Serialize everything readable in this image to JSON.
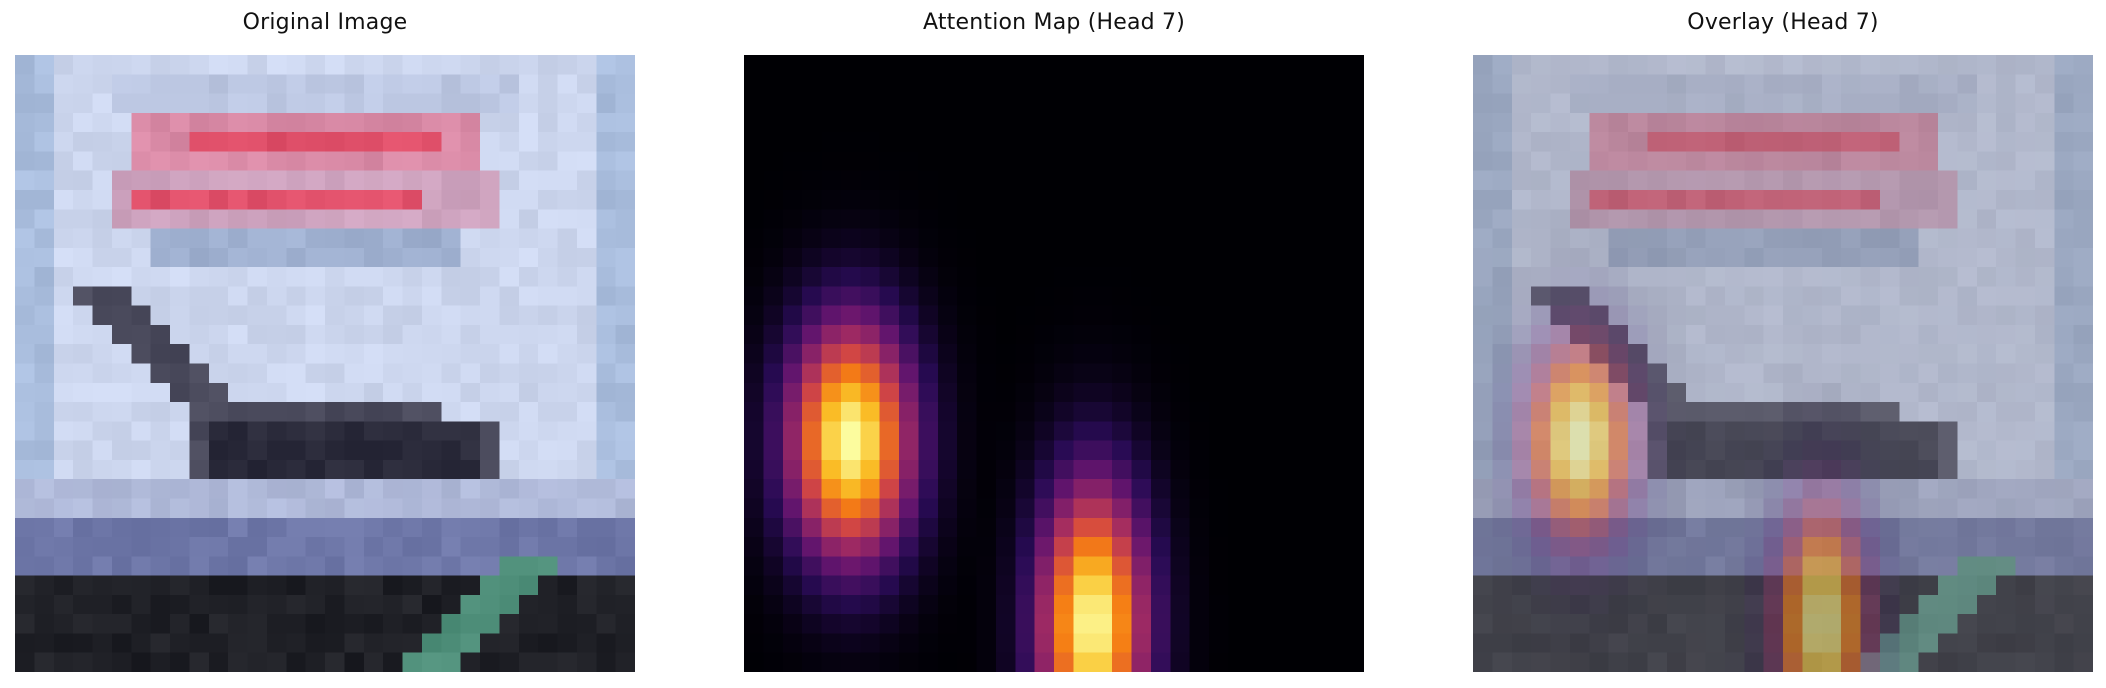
{
  "panels": [
    {
      "title": "Original Image",
      "kind": "original"
    },
    {
      "title": "Attention Map (Head 7)",
      "kind": "attention",
      "colormap": "inferno"
    },
    {
      "title": "Overlay (Head 7)",
      "kind": "overlay"
    }
  ],
  "image": {
    "grid_cols": 32,
    "grid_rows": 32,
    "colors": {
      "sky": "#ccd6ee",
      "sky_edge": "#a9bddd",
      "sign_text_pink": "#d98aa6",
      "sign_text_red": "#e0506a",
      "sign_bg": "#bcc7e2",
      "sign_strip": "#9fb0d0",
      "aircraft_dark": "#2a2a3a",
      "aircraft_mid": "#4a4a5c",
      "ground_blue": "#6e77a8",
      "ground_dark": "#1f2026",
      "stripe_green": "#4f8f7a"
    }
  },
  "attention": {
    "peaks": [
      {
        "label": "left-blob",
        "col": 5.5,
        "row": 20,
        "sigma_col": 2.2,
        "sigma_row": 4.2,
        "strength": 1.0
      },
      {
        "label": "bottom-blob",
        "col": 18.0,
        "row": 29.5,
        "sigma_col": 1.9,
        "sigma_row": 5.0,
        "strength": 1.0
      }
    ]
  }
}
